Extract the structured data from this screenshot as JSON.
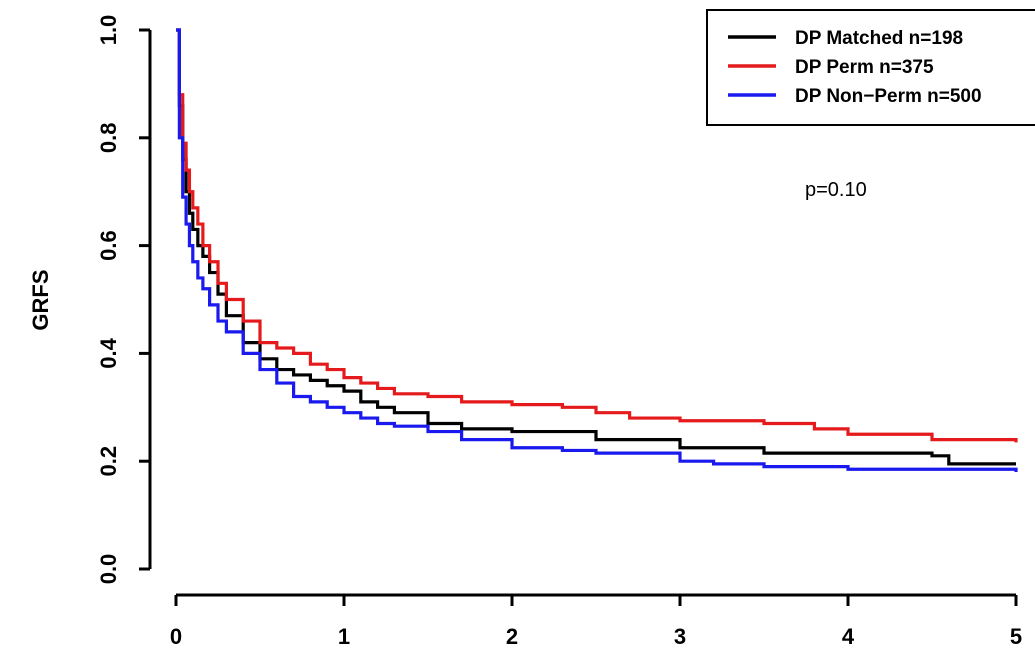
{
  "chart_data": {
    "type": "line",
    "title": "",
    "xlabel": "",
    "ylabel": "GRFS",
    "xlim": [
      0,
      5
    ],
    "ylim": [
      0,
      1
    ],
    "x_ticks": [
      "0",
      "1",
      "2",
      "3",
      "4",
      "5"
    ],
    "y_ticks": [
      "0.0",
      "0.2",
      "0.4",
      "0.6",
      "0.8",
      "1.0"
    ],
    "grid": false,
    "legend_position": "top-right",
    "annotation": "p=0.10",
    "series": [
      {
        "name": "DP Matched n=198",
        "color": "#000000",
        "x": [
          0,
          0.02,
          0.04,
          0.06,
          0.08,
          0.1,
          0.13,
          0.16,
          0.2,
          0.25,
          0.3,
          0.4,
          0.5,
          0.6,
          0.7,
          0.8,
          0.9,
          1.0,
          1.1,
          1.2,
          1.3,
          1.5,
          1.7,
          2.0,
          2.2,
          2.5,
          3.0,
          3.5,
          4.0,
          4.5,
          4.6,
          5.0
        ],
        "y": [
          1.0,
          0.86,
          0.76,
          0.7,
          0.66,
          0.63,
          0.6,
          0.58,
          0.55,
          0.51,
          0.47,
          0.42,
          0.39,
          0.37,
          0.36,
          0.35,
          0.34,
          0.33,
          0.31,
          0.3,
          0.29,
          0.27,
          0.26,
          0.255,
          0.255,
          0.24,
          0.225,
          0.215,
          0.215,
          0.21,
          0.195,
          0.195
        ]
      },
      {
        "name": "DP Perm n=375",
        "color": "#e41a1c",
        "x": [
          0,
          0.02,
          0.04,
          0.06,
          0.08,
          0.1,
          0.13,
          0.16,
          0.2,
          0.25,
          0.3,
          0.4,
          0.5,
          0.6,
          0.7,
          0.8,
          0.9,
          1.0,
          1.1,
          1.2,
          1.3,
          1.5,
          1.7,
          2.0,
          2.3,
          2.5,
          2.7,
          3.0,
          3.5,
          3.8,
          4.0,
          4.5,
          5.0
        ],
        "y": [
          1.0,
          0.88,
          0.79,
          0.74,
          0.7,
          0.67,
          0.64,
          0.6,
          0.57,
          0.53,
          0.5,
          0.46,
          0.42,
          0.41,
          0.4,
          0.38,
          0.37,
          0.355,
          0.345,
          0.335,
          0.325,
          0.32,
          0.31,
          0.305,
          0.3,
          0.29,
          0.28,
          0.275,
          0.27,
          0.26,
          0.25,
          0.24,
          0.235
        ]
      },
      {
        "name": "DP Non−Perm n=500",
        "color": "#1a1aee",
        "x": [
          0,
          0.02,
          0.04,
          0.06,
          0.08,
          0.1,
          0.13,
          0.16,
          0.2,
          0.25,
          0.3,
          0.4,
          0.5,
          0.6,
          0.7,
          0.8,
          0.9,
          1.0,
          1.1,
          1.2,
          1.3,
          1.5,
          1.7,
          2.0,
          2.3,
          2.5,
          3.0,
          3.2,
          3.5,
          4.0,
          4.5,
          5.0
        ],
        "y": [
          1.0,
          0.8,
          0.69,
          0.64,
          0.6,
          0.57,
          0.54,
          0.52,
          0.49,
          0.46,
          0.44,
          0.4,
          0.37,
          0.345,
          0.32,
          0.31,
          0.3,
          0.29,
          0.28,
          0.27,
          0.265,
          0.255,
          0.24,
          0.225,
          0.22,
          0.215,
          0.2,
          0.195,
          0.19,
          0.185,
          0.185,
          0.18
        ]
      }
    ]
  }
}
